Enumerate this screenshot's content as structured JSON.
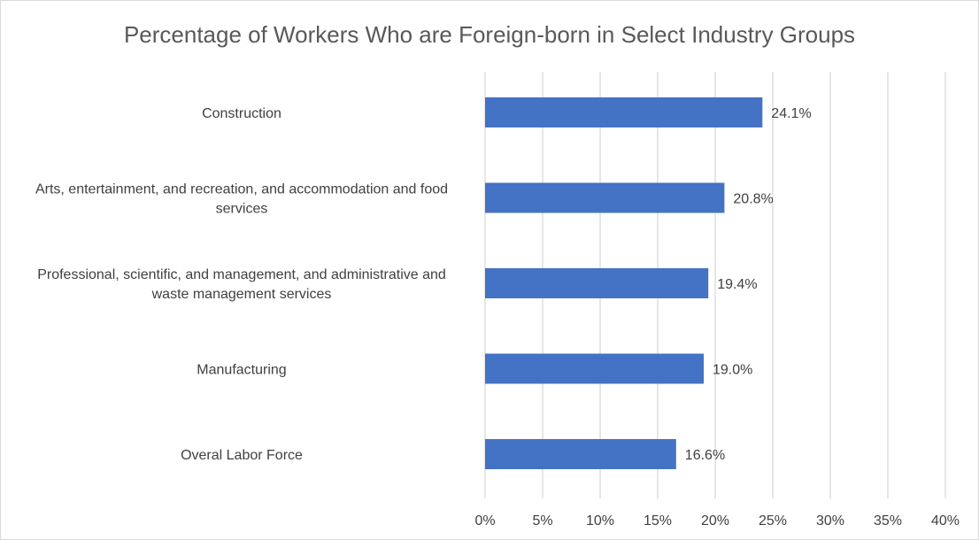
{
  "chart_data": {
    "type": "bar",
    "orientation": "horizontal",
    "title": "Percentage of Workers Who are Foreign-born in Select Industry Groups",
    "categories": [
      "Construction",
      "Arts, entertainment, and recreation, and accommodation and food services",
      "Professional, scientific, and management, and administrative and waste management services",
      "Manufacturing",
      "Overal Labor Force"
    ],
    "category_lines": [
      [
        "Construction"
      ],
      [
        "Arts, entertainment, and recreation, and accommodation and food",
        "services"
      ],
      [
        "Professional, scientific, and management, and administrative and",
        "waste management services"
      ],
      [
        "Manufacturing"
      ],
      [
        "Overal Labor Force"
      ]
    ],
    "values": [
      24.1,
      20.8,
      19.4,
      19.0,
      16.6
    ],
    "data_labels": [
      "24.1%",
      "20.8%",
      "19.4%",
      "19.0%",
      "16.6%"
    ],
    "xlabel": "",
    "ylabel": "",
    "xlim": [
      0,
      40
    ],
    "x_ticks": [
      0,
      5,
      10,
      15,
      20,
      25,
      30,
      35,
      40
    ],
    "x_tick_labels": [
      "0%",
      "5%",
      "10%",
      "15%",
      "20%",
      "25%",
      "30%",
      "35%",
      "40%"
    ],
    "grid": true,
    "legend": "none",
    "bar_color": "#4472c4"
  }
}
